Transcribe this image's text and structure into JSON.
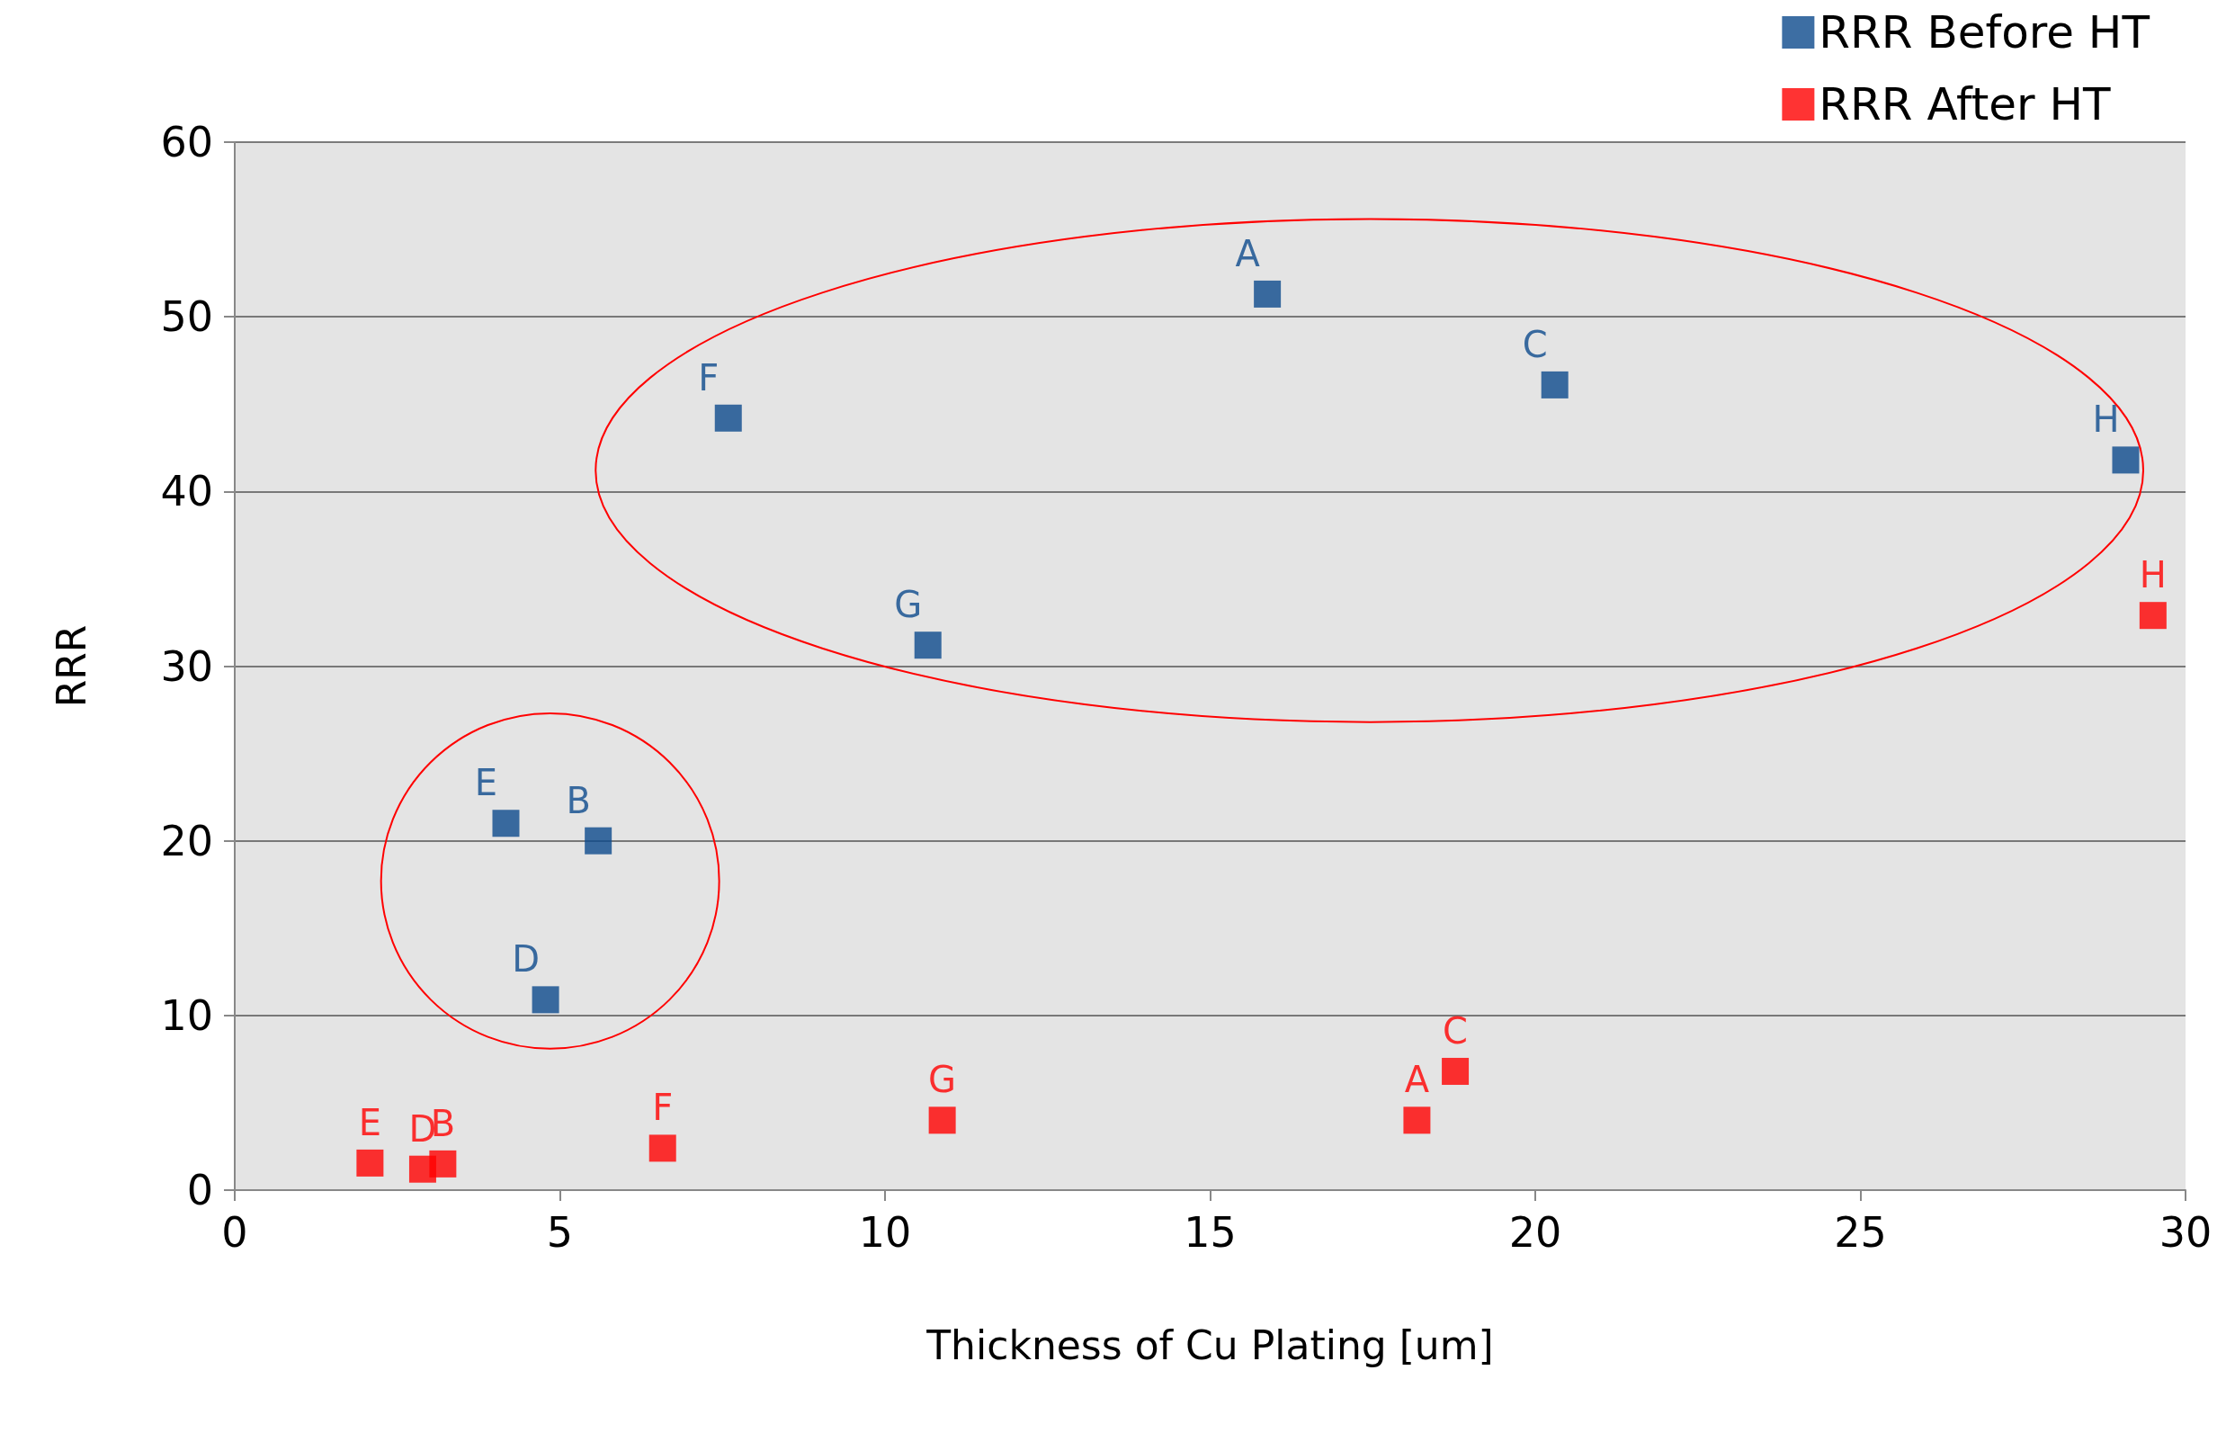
{
  "chart_data": {
    "type": "scatter",
    "xlabel": "Thickness of Cu Plating [um]",
    "ylabel": "RRR",
    "series": [
      {
        "name": "RRR Before HT",
        "color": "#0d4a8c",
        "x": [
          15.88,
          20.3,
          7.59,
          29.08,
          10.66,
          4.17,
          5.59,
          4.78
        ],
        "values": [
          51.3,
          46.1,
          44.2,
          41.8,
          31.2,
          21.0,
          20.0,
          10.9
        ],
        "value_labels": [
          "A",
          "C",
          "F",
          "H",
          "G",
          "E",
          "B",
          "D"
        ]
      },
      {
        "name": "RRR After HT",
        "color": "#ff0000",
        "x": [
          2.08,
          2.89,
          3.2,
          6.58,
          10.88,
          18.18,
          18.77,
          29.5
        ],
        "values": [
          1.55,
          1.2,
          1.5,
          2.4,
          4.0,
          4.0,
          6.8,
          32.9
        ],
        "value_labels": [
          "E",
          "D",
          "B",
          "F",
          "G",
          "A",
          "C",
          "H"
        ]
      }
    ],
    "xlim": [
      0,
      30
    ],
    "xticks": [
      0,
      5,
      10,
      15,
      20,
      25,
      30
    ],
    "ylim": [
      0,
      60
    ],
    "yticks": [
      0,
      10,
      20,
      30,
      40,
      50,
      60
    ],
    "grid": "y",
    "legend": "top right",
    "marker": "square"
  }
}
